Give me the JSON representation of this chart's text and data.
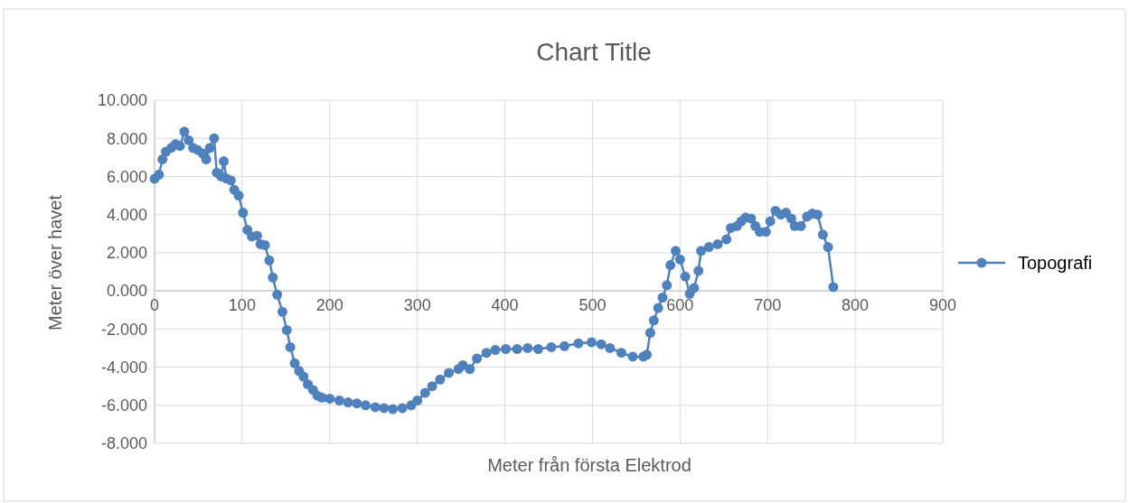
{
  "chart_data": {
    "type": "line",
    "title": "Chart Title",
    "xlabel": "Meter från första Elektrod",
    "ylabel": "Meter över havet",
    "xlim": [
      0,
      900
    ],
    "xticks": [
      0,
      100,
      200,
      300,
      400,
      500,
      600,
      700,
      800,
      900
    ],
    "ylim": [
      -8,
      10
    ],
    "yticks": [
      {
        "value": -8,
        "label": "-8.000"
      },
      {
        "value": -6,
        "label": "-6.000"
      },
      {
        "value": -4,
        "label": "-4.000"
      },
      {
        "value": -2,
        "label": "-2.000"
      },
      {
        "value": 0,
        "label": "0.000"
      },
      {
        "value": 2,
        "label": "2.000"
      },
      {
        "value": 4,
        "label": "4.000"
      },
      {
        "value": 6,
        "label": "6.000"
      },
      {
        "value": 8,
        "label": "8.000"
      },
      {
        "value": 10,
        "label": "10.000"
      }
    ],
    "grid": true,
    "legend": "right",
    "marker": "circle",
    "line_style": "solid",
    "x": [
      0,
      5,
      9,
      13,
      19,
      24,
      29,
      34,
      39,
      44,
      49,
      55,
      59,
      63,
      68,
      71,
      76,
      79,
      82,
      87,
      91,
      96,
      101,
      106,
      111,
      117,
      121,
      126,
      131,
      135,
      140,
      146,
      151,
      155,
      160,
      165,
      170,
      175,
      181,
      186,
      191,
      200,
      211,
      221,
      231,
      241,
      252,
      262,
      272,
      283,
      293,
      300,
      309,
      317,
      326,
      336,
      347,
      352,
      360,
      368,
      379,
      389,
      401,
      414,
      426,
      438,
      453,
      468,
      484,
      499,
      510,
      520,
      533,
      546,
      558,
      562,
      566,
      570,
      575,
      580,
      585,
      589,
      595,
      600,
      606,
      611,
      616,
      621,
      624,
      633,
      643,
      653,
      658,
      665,
      670,
      675,
      681,
      686,
      691,
      698,
      703,
      709,
      715,
      721,
      727,
      731,
      738,
      745,
      751,
      757,
      763,
      769,
      775
    ],
    "series": [
      {
        "name": "Topografi",
        "color": "#4f81bd",
        "values": [
          5.88,
          6.1,
          6.9,
          7.3,
          7.5,
          7.7,
          7.6,
          8.35,
          7.9,
          7.5,
          7.4,
          7.2,
          6.9,
          7.5,
          8.0,
          6.2,
          6.0,
          6.8,
          5.9,
          5.8,
          5.3,
          5.0,
          4.1,
          3.2,
          2.85,
          2.9,
          2.45,
          2.4,
          1.6,
          0.7,
          -0.2,
          -1.1,
          -2.05,
          -2.95,
          -3.8,
          -4.2,
          -4.5,
          -4.9,
          -5.2,
          -5.5,
          -5.6,
          -5.65,
          -5.75,
          -5.85,
          -5.9,
          -6.0,
          -6.1,
          -6.15,
          -6.2,
          -6.15,
          -6.0,
          -5.75,
          -5.35,
          -5.0,
          -4.65,
          -4.3,
          -4.1,
          -3.9,
          -4.1,
          -3.55,
          -3.25,
          -3.1,
          -3.05,
          -3.05,
          -3.0,
          -3.05,
          -2.95,
          -2.9,
          -2.75,
          -2.7,
          -2.8,
          -3.0,
          -3.25,
          -3.45,
          -3.45,
          -3.35,
          -2.2,
          -1.55,
          -0.9,
          -0.35,
          0.3,
          1.35,
          2.1,
          1.65,
          0.75,
          -0.15,
          0.15,
          1.05,
          2.1,
          2.3,
          2.45,
          2.7,
          3.3,
          3.4,
          3.65,
          3.85,
          3.8,
          3.4,
          3.1,
          3.1,
          3.65,
          4.2,
          4.0,
          4.1,
          3.8,
          3.4,
          3.4,
          3.9,
          4.05,
          4.0,
          2.95,
          2.3,
          0.2
        ]
      }
    ]
  }
}
